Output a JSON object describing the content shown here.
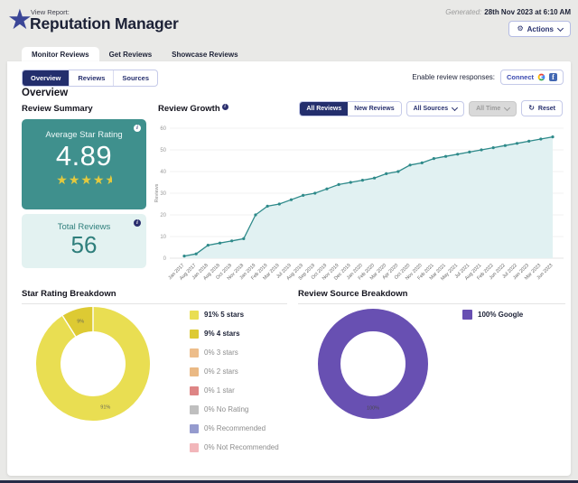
{
  "header": {
    "eyebrow": "View Report:",
    "title": "Reputation Manager",
    "generated_label": "Generated:",
    "generated_value": "28th Nov 2023 at 6:10 AM",
    "actions_label": "Actions"
  },
  "icons": {
    "logo_star": "★",
    "gear": "⚙",
    "refresh": "↻",
    "info": "i",
    "facebook": "f"
  },
  "tabs": [
    {
      "label": "Monitor Reviews",
      "active": true
    },
    {
      "label": "Get Reviews",
      "active": false
    },
    {
      "label": "Showcase Reviews",
      "active": false
    }
  ],
  "subtabs": [
    {
      "label": "Overview",
      "active": true
    },
    {
      "label": "Reviews",
      "active": false
    },
    {
      "label": "Sources",
      "active": false
    }
  ],
  "review_responses": {
    "label": "Enable review responses:",
    "connect_label": "Connect"
  },
  "overview_heading": "Overview",
  "summary": {
    "title": "Review Summary",
    "avg_label": "Average Star Rating",
    "avg_value": "4.89",
    "stars": 4.5,
    "total_label": "Total Reviews",
    "total_value": "56"
  },
  "growth": {
    "title": "Review Growth",
    "filters": {
      "all_reviews": "All Reviews",
      "new_reviews": "New Reviews",
      "all_sources": "All Sources",
      "all_time": "All Time",
      "reset": "Reset"
    }
  },
  "sections": {
    "star_breakdown_title": "Star Rating Breakdown",
    "source_breakdown_title": "Review Source Breakdown"
  },
  "colors": {
    "accent_navy": "#232e6d",
    "teal": "#3f908d",
    "teal_light": "#e3f2f1",
    "star_yellow": "#e4c93e",
    "purple": "#6850b2"
  },
  "chart_data": [
    {
      "type": "line",
      "title": "Review Growth",
      "xlabel": "",
      "ylabel": "Reviews",
      "ylim": [
        0,
        60
      ],
      "yticks": [
        0,
        10,
        20,
        30,
        40,
        50,
        60
      ],
      "grid": true,
      "x": [
        "Jan 2017",
        "Aug 2017",
        "Jan 2018",
        "Aug 2018",
        "Oct 2018",
        "Nov 2018",
        "Jan 2019",
        "Feb 2019",
        "Mar 2019",
        "Jul 2019",
        "Aug 2019",
        "Sep 2019",
        "Oct 2019",
        "Nov 2019",
        "Dec 2019",
        "Jan 2020",
        "Feb 2020",
        "Mar 2020",
        "Apr 2020",
        "Oct 2020",
        "Nov 2020",
        "Feb 2021",
        "Mar 2021",
        "May 2021",
        "Jul 2021",
        "Aug 2021",
        "Feb 2022",
        "Jun 2022",
        "Jul 2022",
        "Jan 2023",
        "Mar 2023",
        "Jun 2023"
      ],
      "series": [
        {
          "name": "All Reviews",
          "values": [
            1,
            2,
            6,
            7,
            8,
            9,
            20,
            24,
            25,
            27,
            29,
            30,
            32,
            34,
            35,
            36,
            37,
            39,
            40,
            43,
            44,
            46,
            47,
            48,
            49,
            50,
            51,
            52,
            53,
            54,
            55,
            56
          ],
          "color": "#2e8a8a",
          "fill": "#e1f1f2"
        }
      ]
    },
    {
      "type": "donut",
      "title": "Star Rating Breakdown",
      "label_color": "#6a6a55",
      "slices": [
        {
          "label": "5 stars",
          "pct": 91,
          "color": "#e9de52"
        },
        {
          "label": "4 stars",
          "pct": 9,
          "color": "#ddca33"
        },
        {
          "label": "3 stars",
          "pct": 0,
          "color": "#edbd8a"
        },
        {
          "label": "2 stars",
          "pct": 0,
          "color": "#eab984"
        },
        {
          "label": "1 star",
          "pct": 0,
          "color": "#de8585"
        },
        {
          "label": "No Rating",
          "pct": 0,
          "color": "#bfbfbf"
        },
        {
          "label": "Recommended",
          "pct": 0,
          "color": "#959bce"
        },
        {
          "label": "Not Recommended",
          "pct": 0,
          "color": "#f2b6ba"
        }
      ],
      "legend": [
        {
          "text": "91% 5 stars",
          "color": "#e9de52"
        },
        {
          "text": "9% 4 stars",
          "color": "#ddca33"
        },
        {
          "text": "0% 3 stars",
          "color": "#edbd8a"
        },
        {
          "text": "0% 2 stars",
          "color": "#eab984"
        },
        {
          "text": "0% 1 star",
          "color": "#de8585"
        },
        {
          "text": "0% No Rating",
          "color": "#bfbfbf"
        },
        {
          "text": "0% Recommended",
          "color": "#959bce"
        },
        {
          "text": "0% Not Recommended",
          "color": "#f2b6ba"
        }
      ]
    },
    {
      "type": "donut",
      "title": "Review Source Breakdown",
      "label_color": "#4a4a4a",
      "slices": [
        {
          "label": "Google",
          "pct": 100,
          "color": "#6850b2"
        }
      ],
      "legend": [
        {
          "text": "100% Google",
          "color": "#6850b2"
        }
      ]
    }
  ]
}
